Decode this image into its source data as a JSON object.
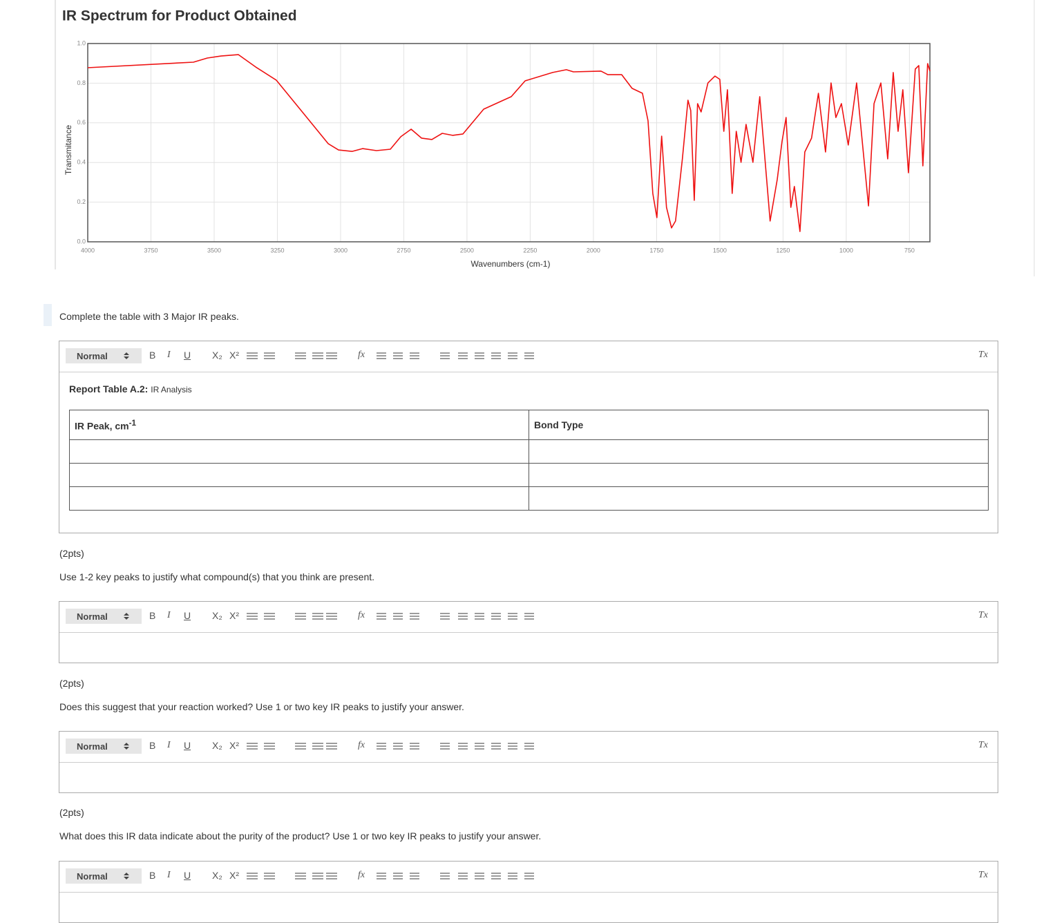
{
  "chart_data": {
    "type": "line",
    "title": "IR Spectrum for Product Obtained",
    "xlabel": "Wavenumbers (cm-1)",
    "ylabel": "Transmitance",
    "color": "#ee1111",
    "grid": true,
    "xlim": [
      4000,
      669
    ],
    "ylim": [
      0,
      1
    ],
    "xticks": [
      4000,
      3750,
      3500,
      3250,
      3000,
      2750,
      2500,
      2250,
      2000,
      1750,
      1500,
      1250,
      1000,
      750
    ],
    "yticks": [
      {
        "value": 0,
        "label": "0.0"
      },
      0.2,
      0.4,
      0.6,
      0.8,
      {
        "value": 1,
        "label": "1.0"
      }
    ],
    "x": [
      4000,
      3582,
      3527,
      3473,
      3404,
      3336,
      3254,
      3145,
      3049,
      3008,
      2954,
      2913,
      2858,
      2803,
      2762,
      2721,
      2680,
      2639,
      2598,
      2557,
      2516,
      2434,
      2325,
      2270,
      2161,
      2107,
      2079,
      1970,
      1943,
      1888,
      1847,
      1806,
      1784,
      1765,
      1749,
      1730,
      1711,
      1691,
      1675,
      1648,
      1626,
      1615,
      1601,
      1588,
      1574,
      1547,
      1519,
      1500,
      1484,
      1470,
      1451,
      1435,
      1416,
      1396,
      1369,
      1342,
      1301,
      1273,
      1254,
      1238,
      1219,
      1205,
      1183,
      1164,
      1137,
      1110,
      1082,
      1060,
      1041,
      1019,
      992,
      959,
      912,
      890,
      863,
      836,
      814,
      795,
      776,
      754,
      727,
      713,
      697,
      678,
      669
    ],
    "values": [
      0.878,
      0.906,
      0.927,
      0.937,
      0.944,
      0.882,
      0.815,
      0.645,
      0.495,
      0.463,
      0.456,
      0.47,
      0.46,
      0.467,
      0.53,
      0.568,
      0.523,
      0.516,
      0.547,
      0.537,
      0.544,
      0.669,
      0.732,
      0.812,
      0.854,
      0.868,
      0.857,
      0.861,
      0.843,
      0.843,
      0.774,
      0.749,
      0.61,
      0.244,
      0.122,
      0.533,
      0.174,
      0.07,
      0.105,
      0.418,
      0.714,
      0.662,
      0.209,
      0.697,
      0.655,
      0.801,
      0.836,
      0.819,
      0.557,
      0.767,
      0.244,
      0.557,
      0.401,
      0.592,
      0.401,
      0.732,
      0.105,
      0.314,
      0.505,
      0.627,
      0.174,
      0.279,
      0.052,
      0.453,
      0.523,
      0.749,
      0.453,
      0.801,
      0.627,
      0.697,
      0.488,
      0.801,
      0.181,
      0.697,
      0.801,
      0.418,
      0.854,
      0.557,
      0.767,
      0.348,
      0.871,
      0.889,
      0.383,
      0.899,
      0.861
    ]
  },
  "form": {
    "toolbar": {
      "format": "Normal",
      "bold": "B",
      "italic": "I",
      "underline": "U",
      "subscript": "X₂",
      "superscript": "X²",
      "formula": "fx",
      "clear": "Tx"
    },
    "prompt": "Complete the table with 3 Major IR peaks.",
    "report_table": {
      "caption_bold": "Report Table A.2:",
      "caption": "IR Analysis",
      "header": [
        {
          "text": "IR Peak, cm",
          "sup": "-1"
        },
        "Bond Type"
      ]
    },
    "questions": [
      {
        "points": "(2pts)",
        "text": "Use 1-2 key peaks to justify what compound(s) that you think are present."
      },
      {
        "points": "(2pts)",
        "text": "Does this suggest that your reaction worked? Use 1 or two key IR peaks to justify your answer."
      },
      {
        "points": "(2pts)",
        "text": "What does this IR data indicate about the purity of the product? Use 1 or two key IR peaks to justify your answer."
      }
    ]
  }
}
